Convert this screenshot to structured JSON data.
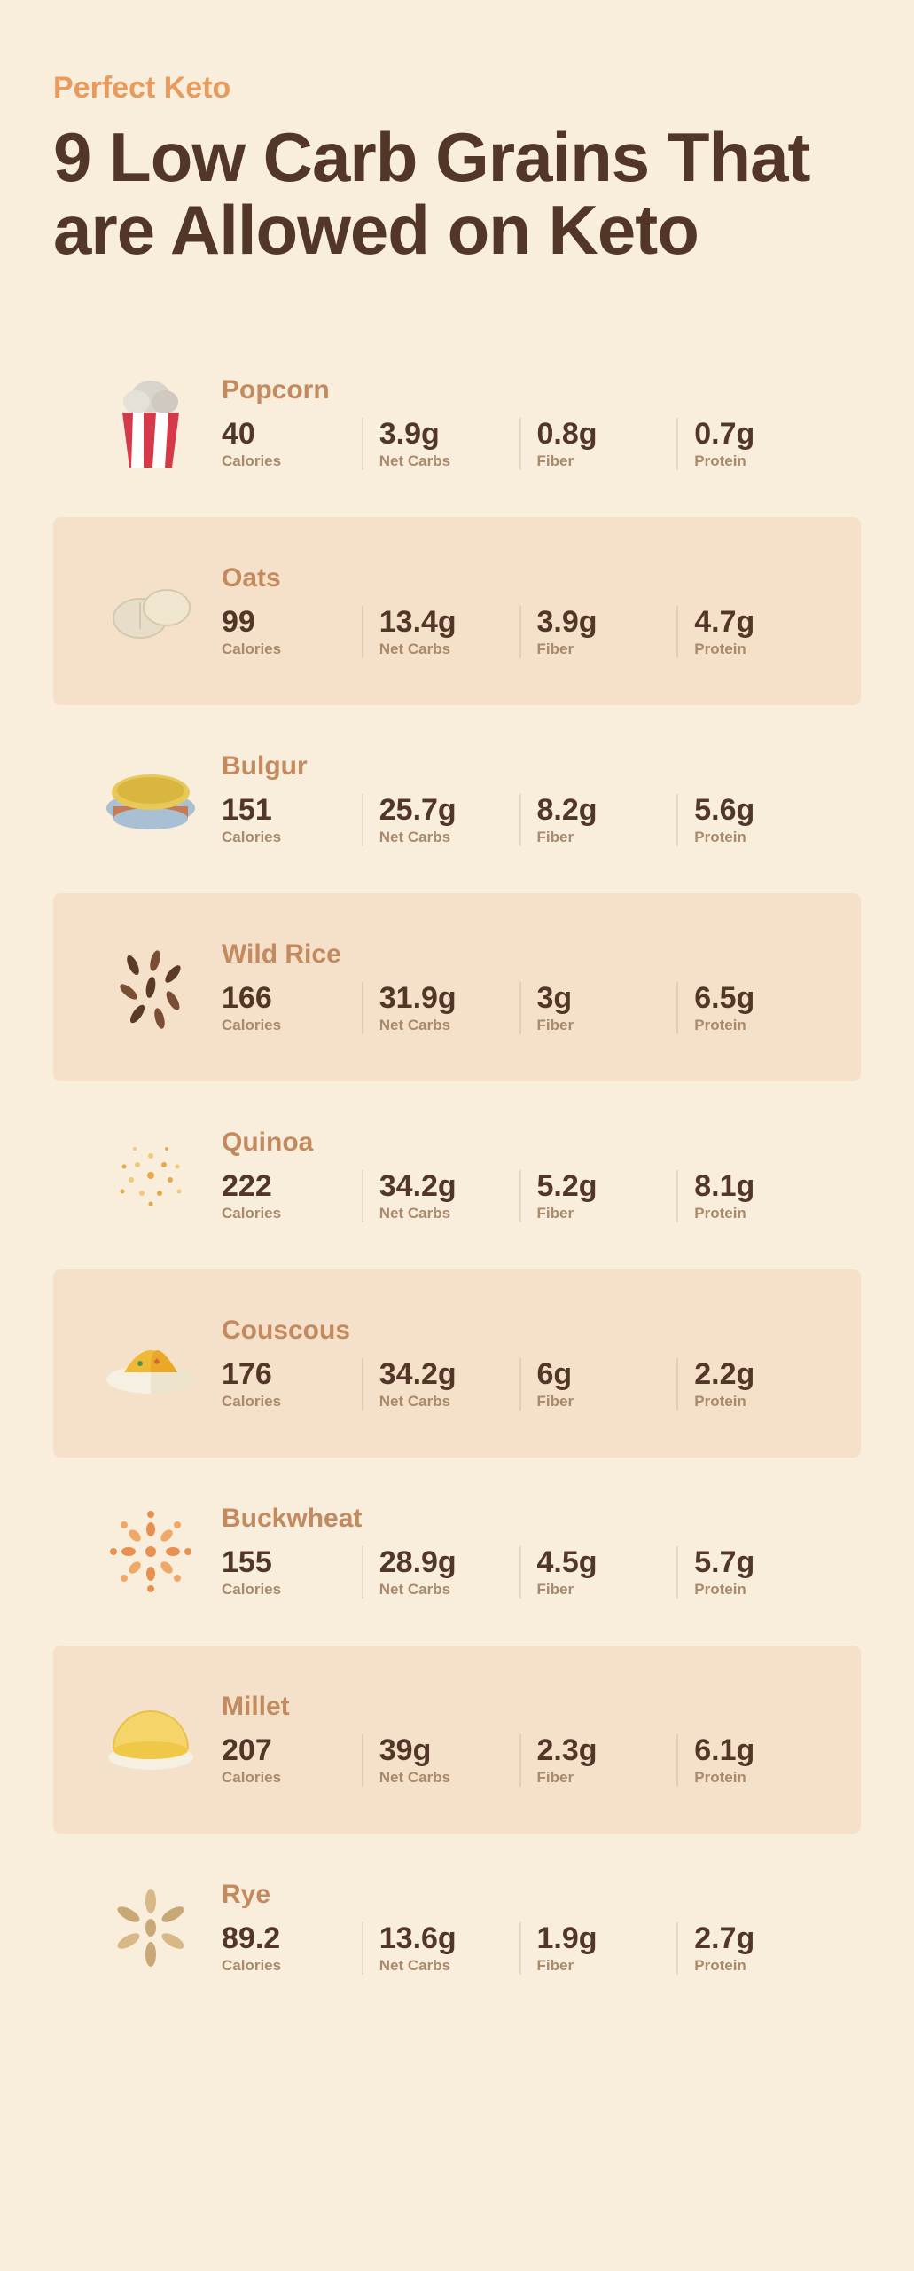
{
  "brand": "Perfect Keto",
  "title": "9 Low Carb Grains That are Allowed on Keto",
  "stat_labels": [
    "Calories",
    "Net Carbs",
    "Fiber",
    "Protein"
  ],
  "colors": {
    "bg": "#f9eddc",
    "alt_bg": "#f5e1c9",
    "brand": "#e89b5d",
    "title": "#523728",
    "name": "#c28a5e",
    "value": "#523728",
    "label": "#a88a6c"
  },
  "items": [
    {
      "name": "Popcorn",
      "icon": "popcorn",
      "calories": "40",
      "net_carbs": "3.9g",
      "fiber": "0.8g",
      "protein": "0.7g"
    },
    {
      "name": "Oats",
      "icon": "oats",
      "calories": "99",
      "net_carbs": "13.4g",
      "fiber": "3.9g",
      "protein": "4.7g"
    },
    {
      "name": "Bulgur",
      "icon": "bulgur",
      "calories": "151",
      "net_carbs": "25.7g",
      "fiber": "8.2g",
      "protein": "5.6g"
    },
    {
      "name": "Wild Rice",
      "icon": "wildrice",
      "calories": "166",
      "net_carbs": "31.9g",
      "fiber": "3g",
      "protein": "6.5g"
    },
    {
      "name": "Quinoa",
      "icon": "quinoa",
      "calories": "222",
      "net_carbs": "34.2g",
      "fiber": "5.2g",
      "protein": "8.1g"
    },
    {
      "name": "Couscous",
      "icon": "couscous",
      "calories": "176",
      "net_carbs": "34.2g",
      "fiber": "6g",
      "protein": "2.2g"
    },
    {
      "name": "Buckwheat",
      "icon": "buckwheat",
      "calories": "155",
      "net_carbs": "28.9g",
      "fiber": "4.5g",
      "protein": "5.7g"
    },
    {
      "name": "Millet",
      "icon": "millet",
      "calories": "207",
      "net_carbs": "39g",
      "fiber": "2.3g",
      "protein": "6.1g"
    },
    {
      "name": "Rye",
      "icon": "rye",
      "calories": "89.2",
      "net_carbs": "13.6g",
      "fiber": "1.9g",
      "protein": "2.7g"
    }
  ]
}
